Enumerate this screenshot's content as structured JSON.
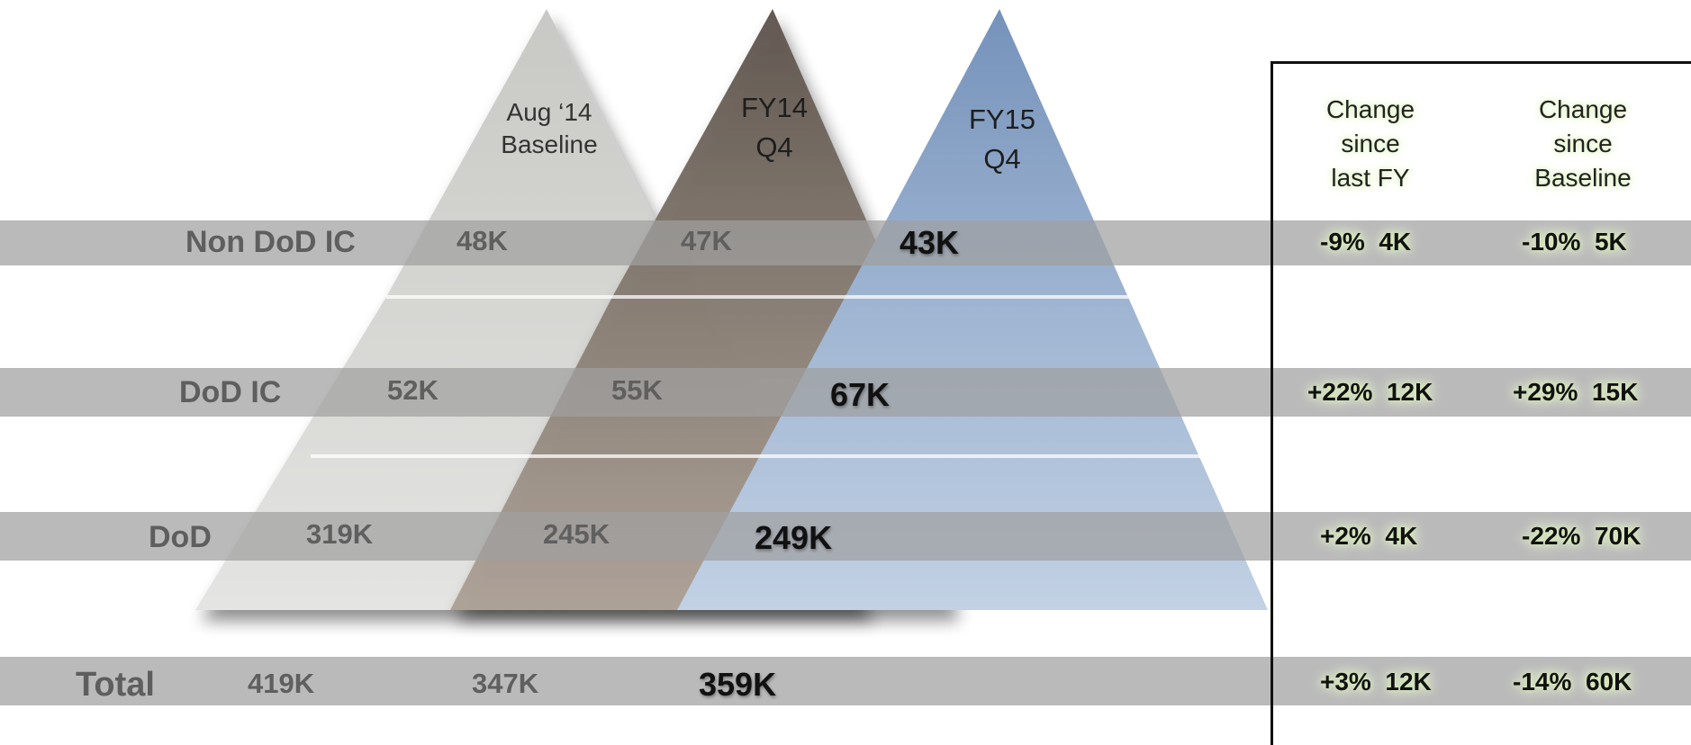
{
  "chart_data": {
    "type": "table",
    "columns": [
      {
        "header_line1": "Aug ‘14",
        "header_line2": "Baseline"
      },
      {
        "header_line1": "FY14",
        "header_line2": "Q4"
      },
      {
        "header_line1": "FY15",
        "header_line2": "Q4"
      }
    ],
    "rows": [
      {
        "label": "Non DoD IC",
        "values": [
          "48K",
          "47K",
          "43K"
        ],
        "change_fy_pct": "-9%",
        "change_fy_abs": "4K",
        "change_base_pct": "-10%",
        "change_base_abs": "5K"
      },
      {
        "label": "DoD IC",
        "values": [
          "52K",
          "55K",
          "67K"
        ],
        "change_fy_pct": "+22%",
        "change_fy_abs": "12K",
        "change_base_pct": "+29%",
        "change_base_abs": "15K"
      },
      {
        "label": "DoD",
        "values": [
          "319K",
          "245K",
          "249K"
        ],
        "change_fy_pct": "+2%",
        "change_fy_abs": "4K",
        "change_base_pct": "-22%",
        "change_base_abs": "70K"
      },
      {
        "label": "Total",
        "values": [
          "419K",
          "347K",
          "359K"
        ],
        "change_fy_pct": "+3%",
        "change_fy_abs": "12K",
        "change_base_pct": "-14%",
        "change_base_abs": "60K"
      }
    ],
    "change_headers": [
      {
        "line1": "Change",
        "line2": "since",
        "line3": "last FY"
      },
      {
        "line1": "Change",
        "line2": "since",
        "line3": "Baseline"
      }
    ]
  },
  "colors": {
    "baseline": "#cfcfcb",
    "fy14": "#857a70",
    "fy15": "#8aa6c7",
    "band": "#a0a0a0"
  }
}
